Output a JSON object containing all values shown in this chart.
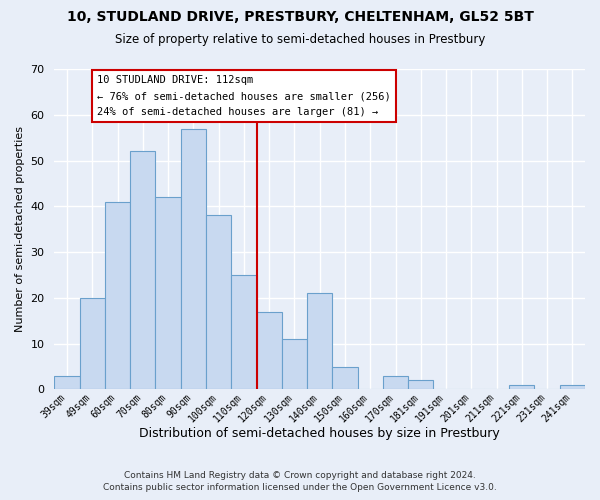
{
  "title": "10, STUDLAND DRIVE, PRESTBURY, CHELTENHAM, GL52 5BT",
  "subtitle": "Size of property relative to semi-detached houses in Prestbury",
  "xlabel": "Distribution of semi-detached houses by size in Prestbury",
  "ylabel": "Number of semi-detached properties",
  "bar_labels": [
    "39sqm",
    "49sqm",
    "60sqm",
    "70sqm",
    "80sqm",
    "90sqm",
    "100sqm",
    "110sqm",
    "120sqm",
    "130sqm",
    "140sqm",
    "150sqm",
    "160sqm",
    "170sqm",
    "181sqm",
    "191sqm",
    "201sqm",
    "211sqm",
    "221sqm",
    "231sqm",
    "241sqm"
  ],
  "bar_values": [
    3,
    20,
    41,
    52,
    42,
    57,
    38,
    25,
    17,
    11,
    21,
    5,
    0,
    3,
    2,
    0,
    0,
    0,
    1,
    0,
    1
  ],
  "bar_color": "#c8d9f0",
  "bar_edge_color": "#6aa0cc",
  "property_line_label": "10 STUDLAND DRIVE: 112sqm",
  "annotation_line1": "← 76% of semi-detached houses are smaller (256)",
  "annotation_line2": "24% of semi-detached houses are larger (81) →",
  "ylim": [
    0,
    70
  ],
  "yticks": [
    0,
    10,
    20,
    30,
    40,
    50,
    60,
    70
  ],
  "footer1": "Contains HM Land Registry data © Crown copyright and database right 2024.",
  "footer2": "Contains public sector information licensed under the Open Government Licence v3.0.",
  "bg_color": "#e8eef8",
  "grid_color": "#ffffff",
  "annotation_box_color": "#ffffff",
  "annotation_box_edge": "#cc0000",
  "vline_color": "#cc0000",
  "vline_x": 7.5
}
